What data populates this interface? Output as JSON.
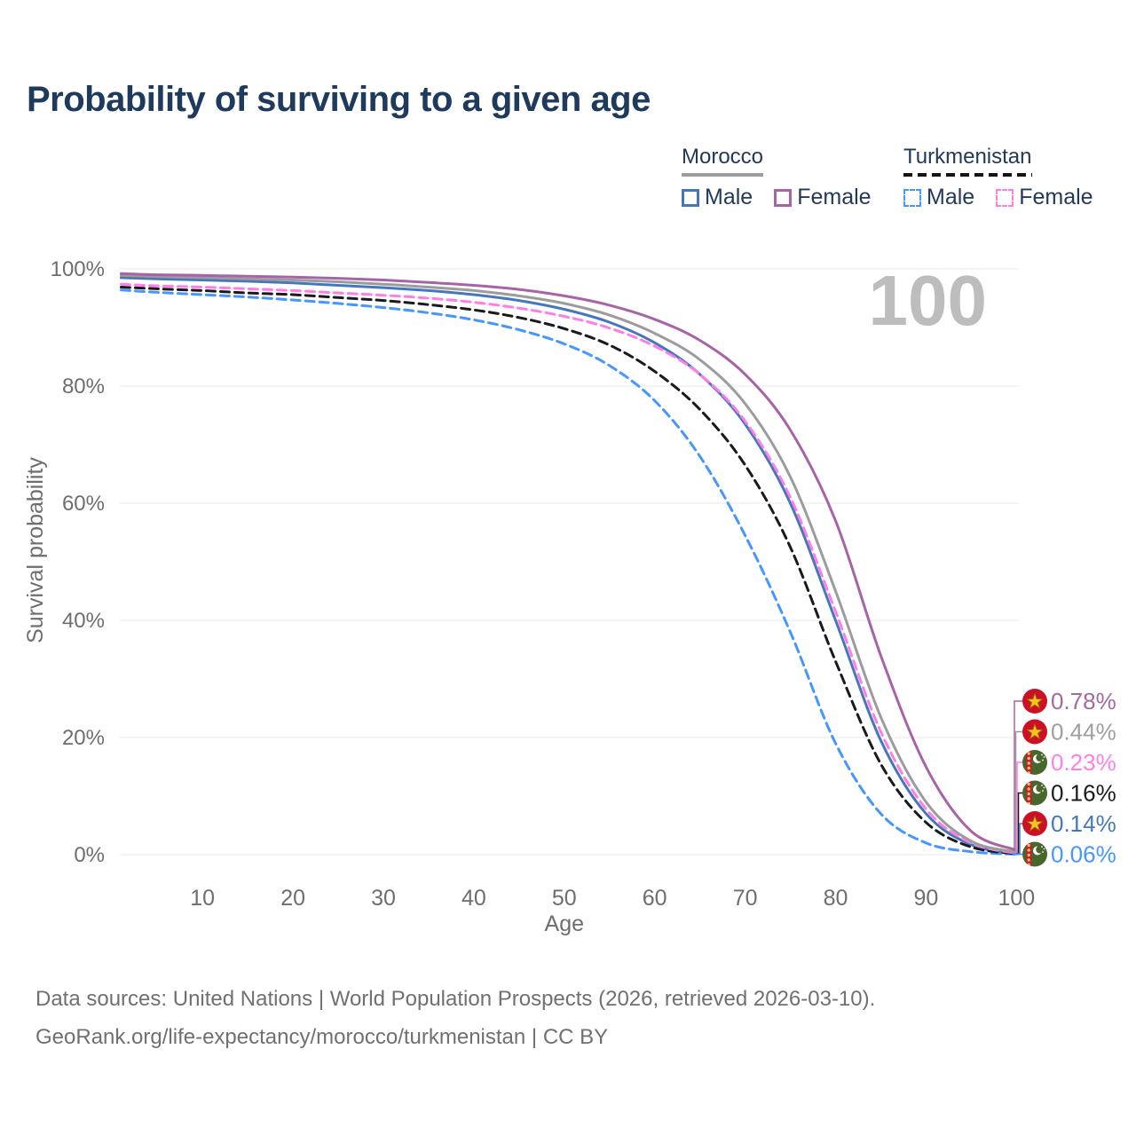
{
  "title": "Probability of surviving to a given age",
  "legend": {
    "morocco": {
      "name": "Morocco",
      "male_label": "Male",
      "female_label": "Female"
    },
    "turkmenistan": {
      "name": "Turkmenistan",
      "male_label": "Male",
      "female_label": "Female"
    }
  },
  "palette": {
    "title_text": "#1e3a5c",
    "legend_text": "#24395a",
    "axis_text": "#6e6e6e",
    "grid": "#e9e9e9",
    "watermark": "#bdbdbd",
    "footer_text": "#707070",
    "morocco_underline": "#9c9c9c",
    "turkmenistan_underline": "#141414"
  },
  "flags": {
    "morocco": {
      "bg": "#cc1126",
      "star": "#f2c41d",
      "star_outline": "#9a7400"
    },
    "turkmenistan": {
      "bg": "#46682c",
      "stripe": "#c01f34",
      "motif": "#e8c05a",
      "crescent": "#ffffff"
    }
  },
  "chart_data": {
    "type": "line",
    "title": "Probability of surviving to a given age",
    "xlabel": "Age",
    "ylabel": "Survival probability",
    "xlim": [
      0,
      100
    ],
    "ylim": [
      0,
      100
    ],
    "grid": "horizontal",
    "legend_position": "top-right",
    "watermark": "100",
    "x_ticks": [
      10,
      20,
      30,
      40,
      50,
      60,
      70,
      80,
      90,
      100
    ],
    "y_ticks": [
      {
        "value": 0,
        "label": "0%"
      },
      {
        "value": 20,
        "label": "20%"
      },
      {
        "value": 40,
        "label": "40%"
      },
      {
        "value": 60,
        "label": "60%"
      },
      {
        "value": 80,
        "label": "80%"
      },
      {
        "value": 100,
        "label": "100%"
      }
    ],
    "ages": [
      1,
      5,
      10,
      15,
      20,
      25,
      30,
      35,
      40,
      45,
      50,
      55,
      60,
      65,
      70,
      75,
      80,
      85,
      90,
      95,
      100
    ],
    "series": [
      {
        "id": "morocco-female",
        "name": "Morocco Female",
        "country": "Morocco",
        "sex": "Female",
        "color": "#a763a6",
        "dash": false,
        "flag": "morocco",
        "end_label": "0.78%",
        "end_label_color": "#a4699f",
        "values": [
          99.2,
          99.0,
          98.9,
          98.75,
          98.6,
          98.4,
          98.1,
          97.7,
          97.2,
          96.5,
          95.4,
          93.8,
          91.4,
          87.8,
          82.0,
          72.5,
          57.0,
          34.0,
          15.0,
          4.0,
          0.78
        ]
      },
      {
        "id": "morocco-all",
        "name": "Morocco Both sexes",
        "country": "Morocco",
        "sex": "All",
        "color": "#9c9c9c",
        "dash": false,
        "flag": "morocco",
        "end_label": "0.44%",
        "end_label_color": "#9e9e9e",
        "values": [
          98.9,
          98.7,
          98.5,
          98.3,
          98.1,
          97.8,
          97.4,
          96.9,
          96.3,
          95.4,
          94.1,
          92.1,
          89.0,
          84.5,
          77.0,
          64.5,
          45.0,
          23.5,
          9.0,
          2.3,
          0.44
        ]
      },
      {
        "id": "turkmenistan-female",
        "name": "Turkmenistan Female",
        "country": "Turkmenistan",
        "sex": "Female",
        "color": "#ff7de7",
        "dash": true,
        "flag": "turkmenistan",
        "end_label": "0.23%",
        "end_label_color": "#ff80e5",
        "values": [
          97.4,
          97.1,
          96.9,
          96.6,
          96.3,
          95.9,
          95.5,
          95.0,
          94.3,
          93.3,
          91.9,
          89.9,
          86.8,
          82.0,
          74.0,
          61.0,
          41.5,
          21.0,
          7.8,
          2.0,
          0.23
        ]
      },
      {
        "id": "turkmenistan-all",
        "name": "Turkmenistan Both sexes",
        "country": "Turkmenistan",
        "sex": "All",
        "color": "#1a1a1a",
        "dash": true,
        "flag": "turkmenistan",
        "end_label": "0.16%",
        "end_label_color": "#1c1c1c",
        "values": [
          96.9,
          96.6,
          96.3,
          95.9,
          95.6,
          95.1,
          94.6,
          93.9,
          93.0,
          91.7,
          89.8,
          87.0,
          82.5,
          76.0,
          66.5,
          52.5,
          33.0,
          15.5,
          5.5,
          1.3,
          0.16
        ]
      },
      {
        "id": "morocco-male",
        "name": "Morocco Male",
        "country": "Morocco",
        "sex": "Male",
        "color": "#4577bd",
        "dash": false,
        "flag": "morocco",
        "end_label": "0.14%",
        "end_label_color": "#4577bd",
        "values": [
          98.5,
          98.3,
          98.1,
          97.9,
          97.6,
          97.2,
          96.8,
          96.3,
          95.6,
          94.6,
          93.1,
          90.9,
          87.4,
          82.0,
          73.5,
          60.0,
          40.0,
          19.5,
          7.0,
          1.7,
          0.14
        ]
      },
      {
        "id": "turkmenistan-male",
        "name": "Turkmenistan Male",
        "country": "Turkmenistan",
        "sex": "Male",
        "color": "#4596ff",
        "dash": true,
        "flag": "turkmenistan",
        "end_label": "0.06%",
        "end_label_color": "#4596ff",
        "values": [
          96.4,
          96.0,
          95.6,
          95.2,
          94.7,
          94.1,
          93.4,
          92.5,
          91.3,
          89.6,
          87.2,
          83.5,
          77.5,
          68.0,
          54.5,
          38.0,
          19.0,
          7.0,
          2.0,
          0.5,
          0.06
        ]
      }
    ]
  },
  "footer": {
    "line1": "Data sources: United Nations | World Population Prospects (2026, retrieved 2026-03-10).",
    "line2": "GeoRank.org/life-expectancy/morocco/turkmenistan | CC BY"
  }
}
